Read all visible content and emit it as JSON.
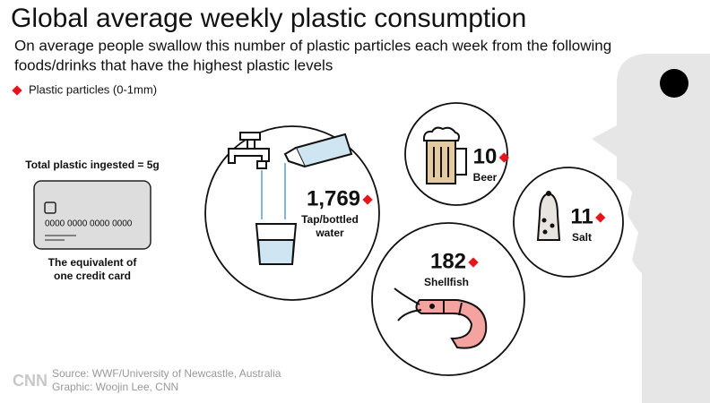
{
  "header": {
    "title": "Global average weekly plastic consumption",
    "subtitle_lines": [
      "On average people swallow this number of plastic particles each week from the following",
      "foods/drinks that have the highest plastic levels"
    ]
  },
  "legend": {
    "label": "Plastic particles (0-1mm)"
  },
  "credit_card": {
    "heading": "Total plastic ingested = 5g",
    "card_number": "0000 0000 0000 0000",
    "caption_lines": [
      "The equivalent of",
      "one credit card"
    ]
  },
  "items": [
    {
      "value": "1,769",
      "label_lines": [
        "Tap/bottled",
        "water"
      ]
    },
    {
      "value": "10",
      "label_lines": [
        "Beer"
      ]
    },
    {
      "value": "11",
      "label_lines": [
        "Salt"
      ]
    },
    {
      "value": "182",
      "label_lines": [
        "Shellfish"
      ]
    }
  ],
  "footer": {
    "logo": "CNN",
    "source": "Source: WWF/University of Newcastle, Australia",
    "credit": "Graphic: Woojin Lee, CNN"
  }
}
